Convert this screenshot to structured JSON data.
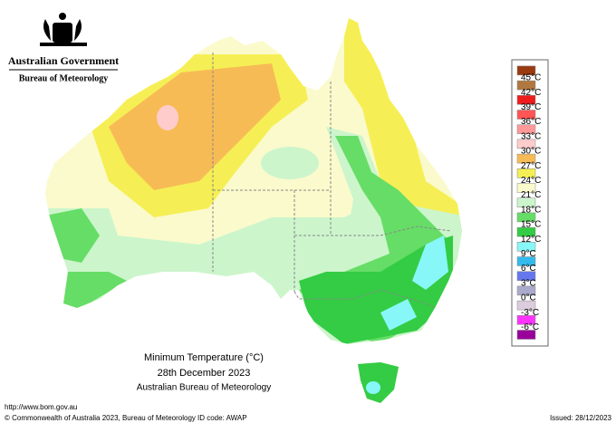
{
  "header": {
    "government": "Australian Government",
    "agency": "Bureau of Meteorology"
  },
  "legend": {
    "labels": [
      "45°C",
      "42°C",
      "39°C",
      "36°C",
      "33°C",
      "30°C",
      "27°C",
      "24°C",
      "21°C",
      "18°C",
      "15°C",
      "12°C",
      "9°C",
      "6°C",
      "3°C",
      "0°C",
      "-3°C",
      "-6°C"
    ],
    "colors": [
      "#9a3a10",
      "#b07840",
      "#ee1c1c",
      "#ff5555",
      "#ff9999",
      "#ffcccc",
      "#f7bb55",
      "#f5ef55",
      "#fafacc",
      "#ccf5cc",
      "#66dd66",
      "#33cc44",
      "#88f7f7",
      "#33bbee",
      "#6677ee",
      "#aaaacc",
      "#ddccdd",
      "#ff33ff",
      "#990099"
    ]
  },
  "caption": {
    "title": "Minimum Temperature (°C)",
    "date": "28th December 2023",
    "source": "Australian Bureau of Meteorology"
  },
  "footer": {
    "url": "http://www.bom.gov.au",
    "copyright": "© Commonwealth of Australia 2023, Bureau of Meteorology",
    "id_code": "ID code: AWAP",
    "issued": "Issued: 28/12/2023"
  }
}
